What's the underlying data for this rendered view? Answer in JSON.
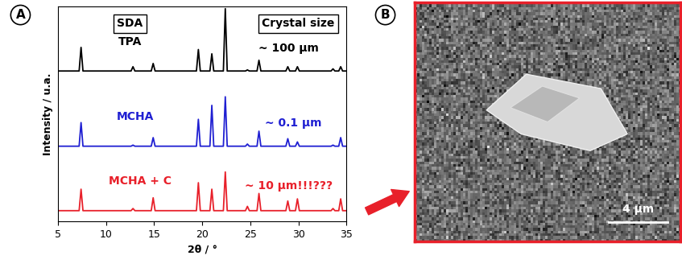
{
  "chart_data": {
    "type": "line",
    "panel": "A",
    "x_label": "2θ / °",
    "y_label": "Intensity / u.a.",
    "xlim": [
      5,
      35
    ],
    "xticks": [
      5,
      10,
      15,
      20,
      25,
      30,
      35
    ],
    "ylim": [
      0,
      100
    ],
    "tick_labels": "x",
    "grid": false,
    "column_headers": [
      "SDA",
      "Crystal size"
    ],
    "x": [
      5,
      7.2,
      7.4,
      7.6,
      12.6,
      12.8,
      13.0,
      14.7,
      14.9,
      15.1,
      19.4,
      19.6,
      19.8,
      20.8,
      21.0,
      21.2,
      22.2,
      22.4,
      22.6,
      24.5,
      24.7,
      24.9,
      25.7,
      25.9,
      26.1,
      28.7,
      28.9,
      29.1,
      29.7,
      29.9,
      30.1,
      33.4,
      33.6,
      33.8,
      34.2,
      34.4,
      34.6,
      35
    ],
    "series": [
      {
        "name": "TPA",
        "color": "#000000",
        "crystal_size": "~ 100 µm",
        "values": [
          70,
          70,
          81,
          70,
          70,
          72,
          70,
          70,
          73.5,
          70,
          70,
          80,
          70,
          70,
          78,
          70,
          70,
          99,
          70,
          70,
          70.5,
          70,
          70,
          75,
          70,
          70,
          72,
          70,
          70,
          72,
          70,
          70,
          71,
          70,
          70,
          72,
          70,
          70
        ]
      },
      {
        "name": "MCHA",
        "color": "#1f1fd2",
        "crystal_size": "~ 0.1 µm",
        "values": [
          35,
          35,
          46,
          35,
          35,
          35.5,
          35,
          35,
          39,
          35,
          35,
          47.5,
          35,
          35,
          54,
          35,
          35,
          58,
          35,
          35,
          36,
          35,
          35,
          42,
          35,
          35,
          38.5,
          35,
          35,
          37,
          35,
          35,
          35.5,
          35,
          35,
          39,
          35,
          35
        ]
      },
      {
        "name": "MCHA + C",
        "color": "#e8202a",
        "crystal_size": "~ 10 µm!!!???",
        "values": [
          5,
          5,
          15,
          5,
          5,
          6,
          5,
          5,
          11,
          5,
          5,
          18,
          5,
          5,
          15,
          5,
          5,
          23,
          5,
          5,
          7,
          5,
          5,
          13,
          5,
          5,
          9.5,
          5,
          5,
          10.5,
          5,
          5,
          6,
          5,
          5,
          10.5,
          5,
          5
        ]
      }
    ]
  },
  "image": {
    "panel": "B",
    "scale_bar": "4 µm"
  }
}
